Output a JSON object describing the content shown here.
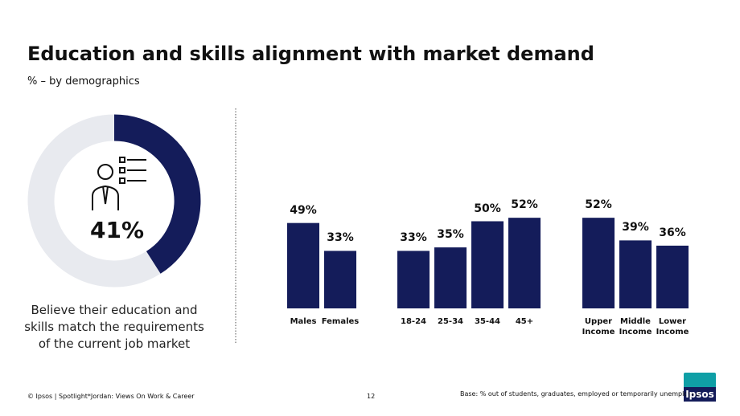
{
  "header": {
    "title": "Education and skills alignment with market demand",
    "subtitle": "% – by demographics"
  },
  "chart_data": [
    {
      "type": "donut",
      "values": [
        41
      ],
      "value_labels": [
        "41%"
      ],
      "color": "#141c5a",
      "track_color": "#e8eaef",
      "caption": "Believe their education and skills match the requirements of the current job market"
    },
    {
      "type": "bar",
      "categories": [
        "Males",
        "Females"
      ],
      "values": [
        49,
        33
      ],
      "value_labels": [
        "49%",
        "33%"
      ],
      "color": "#141c5a"
    },
    {
      "type": "bar",
      "categories": [
        "18-24",
        "25-34",
        "35-44",
        "45+"
      ],
      "values": [
        33,
        35,
        50,
        52
      ],
      "value_labels": [
        "33%",
        "35%",
        "50%",
        "52%"
      ],
      "color": "#141c5a"
    },
    {
      "type": "bar",
      "categories": [
        "Upper Income",
        "Middle Income",
        "Lower Income"
      ],
      "values": [
        52,
        39,
        36
      ],
      "value_labels": [
        "52%",
        "39%",
        "36%"
      ],
      "color": "#141c5a"
    }
  ],
  "footer": {
    "source": "© Ipsos | Spotlight*Jordan: Views On Work & Career",
    "page": "12",
    "base": "Base: % out of students, graduates, employed or temporarily unemployed",
    "logo": "Ipsos"
  }
}
